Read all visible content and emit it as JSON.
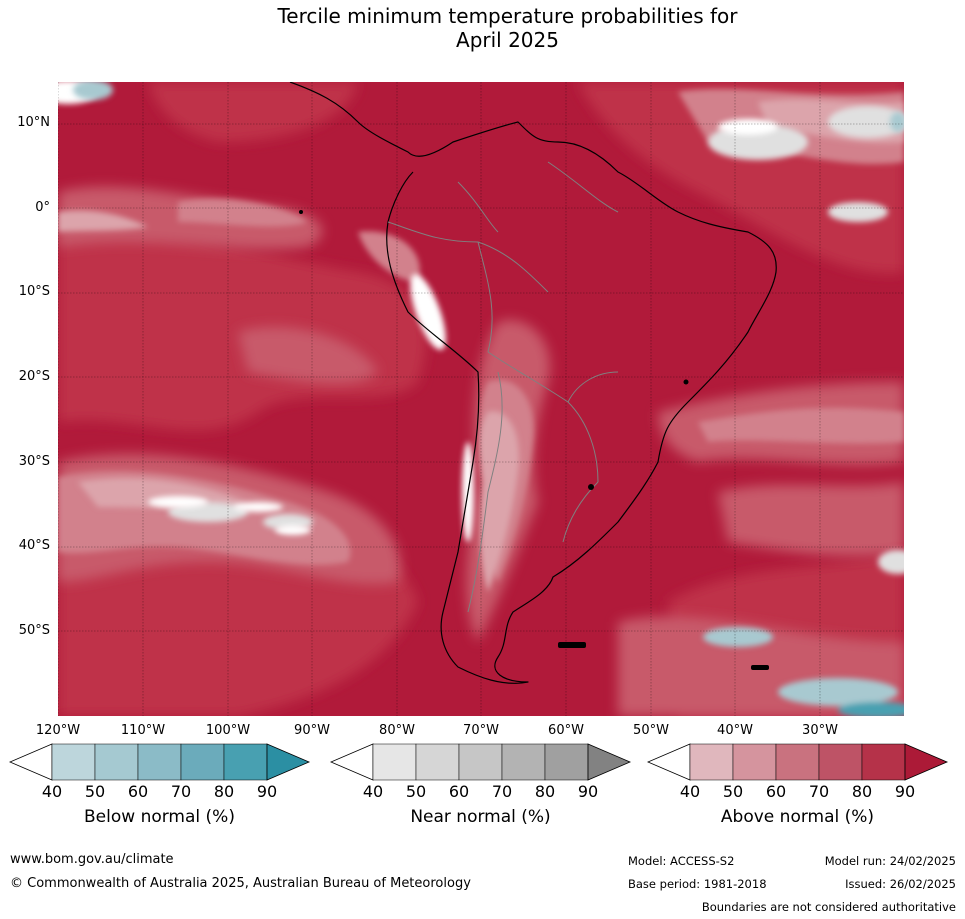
{
  "title_line1": "Tercile minimum temperature probabilities for",
  "title_line2": "April 2025",
  "map": {
    "region": "South America and surrounding oceans",
    "lat_labels": [
      "10°N",
      "0°",
      "10°S",
      "20°S",
      "30°S",
      "40°S",
      "50°S"
    ],
    "lon_labels": [
      "120°W",
      "110°W",
      "100°W",
      "90°W",
      "80°W",
      "70°W",
      "60°W",
      "50°W",
      "40°W",
      "30°W"
    ],
    "dominant_category": "Above normal",
    "colors": {
      "above_90": "#b11a3a",
      "above_80": "#bf3048",
      "above_70": "#c85a6a",
      "above_60": "#d2818c",
      "above_50": "#dca4ab",
      "white": "#ffffff",
      "near_40": "#e0e0e0",
      "below_50": "#a8c9d0",
      "below_60": "#88b9c3"
    }
  },
  "legends": [
    {
      "label": "Below normal (%)",
      "ticks": [
        "40",
        "50",
        "60",
        "70",
        "80",
        "90"
      ],
      "colors": [
        "#ffffff",
        "#bdd6dc",
        "#a5c9d1",
        "#8bbbc7",
        "#6babbb",
        "#48a0b1",
        "#2b8fa3"
      ]
    },
    {
      "label": "Near normal (%)",
      "ticks": [
        "40",
        "50",
        "60",
        "70",
        "80",
        "90"
      ],
      "colors": [
        "#ffffff",
        "#e6e6e6",
        "#d6d6d6",
        "#c6c6c6",
        "#b3b3b3",
        "#a0a0a0",
        "#828282"
      ]
    },
    {
      "label": "Above normal (%)",
      "ticks": [
        "40",
        "50",
        "60",
        "70",
        "80",
        "90"
      ],
      "colors": [
        "#ffffff",
        "#e0b7bd",
        "#d5949e",
        "#c9727f",
        "#be5366",
        "#b53249",
        "#ac1a37"
      ]
    }
  ],
  "footer": {
    "website": "www.bom.gov.au/climate",
    "copyright": "© Commonwealth of Australia 2025, Australian Bureau of Meteorology",
    "model": "Model: ACCESS-S2",
    "base_period": "Base period: 1981-2018",
    "model_run": "Model run: 24/02/2025",
    "issued": "Issued: 26/02/2025",
    "disclaimer": "Boundaries are not considered authoritative"
  }
}
